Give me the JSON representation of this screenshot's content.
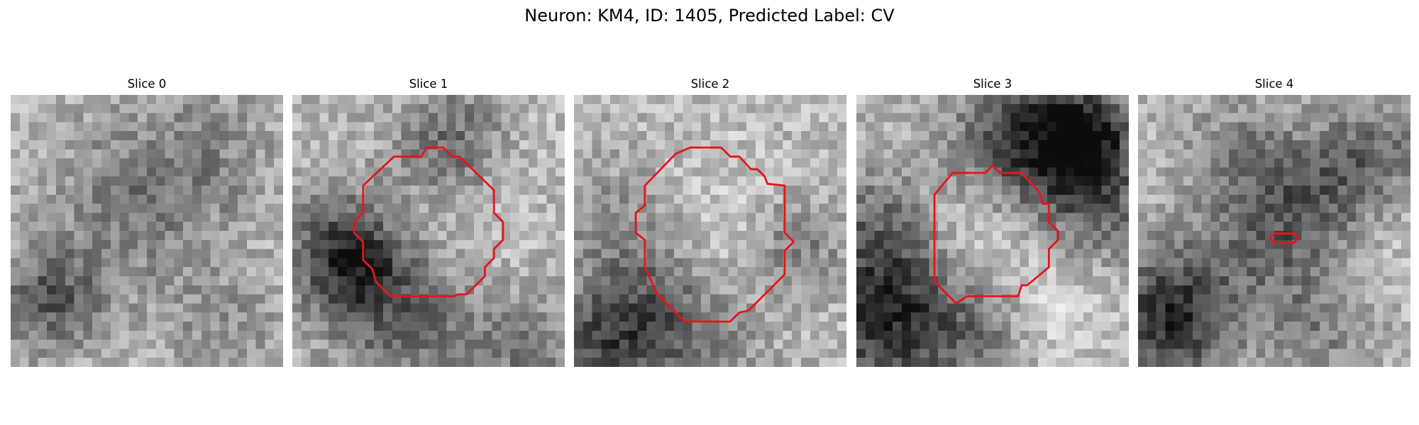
{
  "title": "Neuron: KM4, ID: 1405, Predicted Label: CV",
  "panels": [
    {
      "title": "Slice 0",
      "has_contour": false
    },
    {
      "title": "Slice 1",
      "has_contour": true
    },
    {
      "title": "Slice 2",
      "has_contour": true
    },
    {
      "title": "Slice 3",
      "has_contour": true
    },
    {
      "title": "Slice 4",
      "has_contour": true
    }
  ],
  "colors": {
    "contour": "#e8141c",
    "background": "#ffffff",
    "pixel_dark": "#1a1a1a",
    "pixel_light": "#f2f2f2"
  },
  "grid_size": 30
}
